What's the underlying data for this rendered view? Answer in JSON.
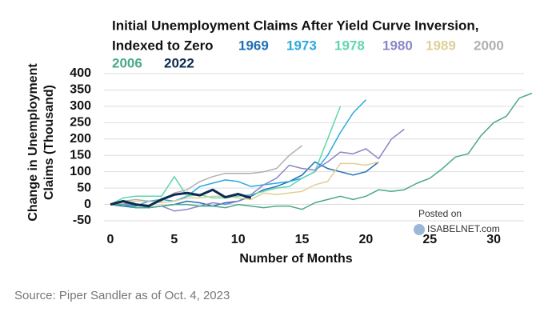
{
  "chart_data": {
    "type": "line",
    "title": [
      "Initial Unemployment Claims After Yield Curve Inversion,",
      "Indexed to Zero"
    ],
    "xlabel": "Number of Months",
    "ylabel": [
      "Change in Unemployment",
      "Claims (Thousand)"
    ],
    "x": [
      0,
      1,
      2,
      3,
      4,
      5,
      6,
      7,
      8,
      9,
      10,
      11,
      12,
      13,
      14,
      15,
      16,
      17,
      18,
      19,
      20,
      21,
      22,
      23,
      24,
      25,
      26,
      27,
      28,
      29,
      30,
      31,
      32,
      33
    ],
    "xlim": [
      0,
      33.5
    ],
    "xticks": [
      0,
      5,
      10,
      15,
      20,
      25,
      30
    ],
    "ylim": [
      -50,
      400
    ],
    "yticks": [
      -50,
      0,
      50,
      100,
      150,
      200,
      250,
      300,
      350,
      400
    ],
    "grid": true,
    "series": [
      {
        "name": "1969",
        "color": "#1f6eb4",
        "values": [
          0,
          -5,
          -10,
          -10,
          -5,
          0,
          10,
          5,
          -5,
          5,
          10,
          25,
          45,
          55,
          70,
          90,
          130,
          110,
          100,
          90,
          100,
          130,
          null,
          null,
          null,
          null,
          null,
          null,
          null,
          null,
          null,
          null,
          null,
          null
        ]
      },
      {
        "name": "1973",
        "color": "#29a9e0",
        "values": [
          0,
          5,
          -5,
          10,
          15,
          10,
          25,
          55,
          65,
          75,
          70,
          55,
          60,
          65,
          70,
          80,
          100,
          150,
          220,
          280,
          320,
          null,
          null,
          null,
          null,
          null,
          null,
          null,
          null,
          null,
          null,
          null,
          null,
          null
        ]
      },
      {
        "name": "1978",
        "color": "#5fd6b0",
        "values": [
          0,
          20,
          25,
          25,
          25,
          85,
          25,
          30,
          20,
          20,
          25,
          30,
          40,
          50,
          55,
          80,
          100,
          200,
          300,
          null,
          null,
          null,
          null,
          null,
          null,
          null,
          null,
          null,
          null,
          null,
          null,
          null,
          null,
          null
        ]
      },
      {
        "name": "1980",
        "color": "#8a87c8",
        "values": [
          0,
          5,
          -10,
          -10,
          -5,
          -20,
          -15,
          -5,
          5,
          0,
          10,
          30,
          60,
          80,
          120,
          110,
          105,
          130,
          160,
          155,
          170,
          140,
          200,
          230,
          null,
          null,
          null,
          null,
          null,
          null,
          null,
          null,
          null,
          null
        ]
      },
      {
        "name": "1989",
        "color": "#e0cf95",
        "values": [
          0,
          5,
          10,
          10,
          5,
          10,
          20,
          20,
          25,
          25,
          20,
          15,
          35,
          30,
          35,
          40,
          60,
          70,
          125,
          125,
          120,
          130,
          null,
          null,
          null,
          null,
          null,
          null,
          null,
          null,
          null,
          null,
          null,
          null
        ]
      },
      {
        "name": "2000",
        "color": "#b0b0b0",
        "values": [
          0,
          10,
          15,
          10,
          10,
          35,
          45,
          70,
          85,
          95,
          95,
          95,
          100,
          110,
          150,
          180,
          null,
          null,
          null,
          null,
          null,
          null,
          null,
          null,
          null,
          null,
          null,
          null,
          null,
          null,
          null,
          null,
          null,
          null
        ]
      },
      {
        "name": "2006",
        "color": "#4aa88a",
        "values": [
          0,
          0,
          -10,
          -10,
          -5,
          0,
          0,
          -5,
          -5,
          -10,
          0,
          -5,
          -10,
          -5,
          -5,
          -15,
          5,
          15,
          25,
          15,
          25,
          45,
          40,
          45,
          65,
          80,
          110,
          145,
          155,
          210,
          250,
          270,
          325,
          340
        ]
      },
      {
        "name": "2022",
        "color": "#0d2a4f",
        "values": [
          0,
          10,
          0,
          -5,
          15,
          30,
          35,
          28,
          45,
          22,
          32,
          20,
          null,
          null,
          null,
          null,
          null,
          null,
          null,
          null,
          null,
          null,
          null,
          null,
          null,
          null,
          null,
          null,
          null,
          null,
          null,
          null,
          null,
          null
        ]
      }
    ]
  },
  "watermark": [
    "Posted on",
    "ISABELNET.com"
  ],
  "source": "Source: Piper Sandler as of Oct. 4, 2023"
}
